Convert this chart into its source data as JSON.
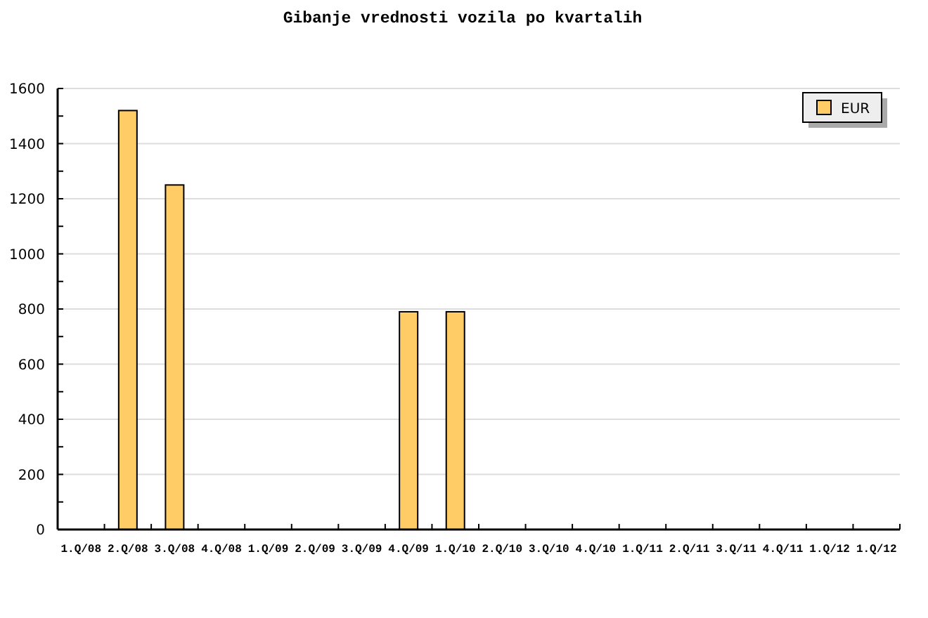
{
  "chart_data": {
    "type": "bar",
    "title": "Gibanje vrednosti vozila po kvartalih",
    "categories": [
      "1.Q/08",
      "2.Q/08",
      "3.Q/08",
      "4.Q/08",
      "1.Q/09",
      "2.Q/09",
      "3.Q/09",
      "4.Q/09",
      "1.Q/10",
      "2.Q/10",
      "3.Q/10",
      "4.Q/10",
      "1.Q/11",
      "2.Q/11",
      "3.Q/11",
      "4.Q/11",
      "1.Q/12",
      "1.Q/12"
    ],
    "series": [
      {
        "name": "EUR",
        "color": "#ffcc66",
        "values": [
          0,
          1520,
          1250,
          0,
          0,
          0,
          0,
          790,
          790,
          0,
          0,
          0,
          0,
          0,
          0,
          0,
          0,
          0
        ]
      }
    ],
    "ylim": [
      0,
      1600
    ],
    "yticks": [
      0,
      {
        "value": 100,
        "label": null
      },
      200,
      {
        "value": 300,
        "label": null
      },
      400,
      {
        "value": 500,
        "label": null
      },
      600,
      {
        "value": 700,
        "label": null
      },
      800,
      {
        "value": 900,
        "label": null
      },
      1000,
      {
        "value": 1100,
        "label": null
      },
      1200,
      {
        "value": 1300,
        "label": null
      },
      1400,
      {
        "value": 1500,
        "label": null
      },
      1600
    ],
    "grid": "y",
    "legend": "top right"
  }
}
